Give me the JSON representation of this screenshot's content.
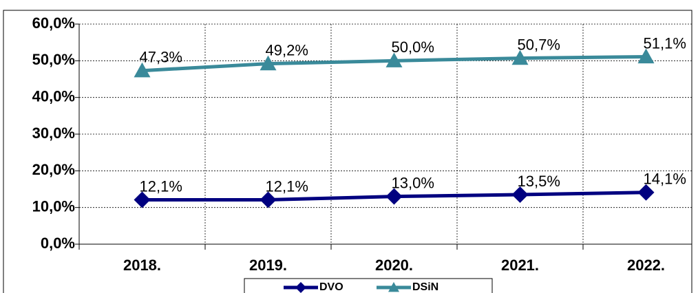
{
  "chart_data": {
    "type": "line",
    "categories": [
      "2018.",
      "2019.",
      "2020.",
      "2021.",
      "2022."
    ],
    "series": [
      {
        "name": "DVO",
        "color": "#000080",
        "marker": "diamond",
        "values": [
          12.1,
          12.1,
          13.0,
          13.5,
          14.1
        ],
        "value_labels": [
          "12,1%",
          "12,1%",
          "13,0%",
          "13,5%",
          "14,1%"
        ]
      },
      {
        "name": "DSiN",
        "color": "#3A8A9A",
        "marker": "triangle",
        "values": [
          47.3,
          49.2,
          50.0,
          50.7,
          51.1
        ],
        "value_labels": [
          "47,3%",
          "49,2%",
          "50,0%",
          "50,7%",
          "51,1%"
        ]
      }
    ],
    "ylim": [
      0,
      60
    ],
    "yticks": [
      {
        "value": 0,
        "label": "0,0%"
      },
      {
        "value": 10,
        "label": "10,0%"
      },
      {
        "value": 20,
        "label": "20,0%"
      },
      {
        "value": 30,
        "label": "30,0%"
      },
      {
        "value": 40,
        "label": "40,0%"
      },
      {
        "value": 50,
        "label": "50,0%"
      },
      {
        "value": 60,
        "label": "60,0%"
      }
    ],
    "grid": true
  }
}
